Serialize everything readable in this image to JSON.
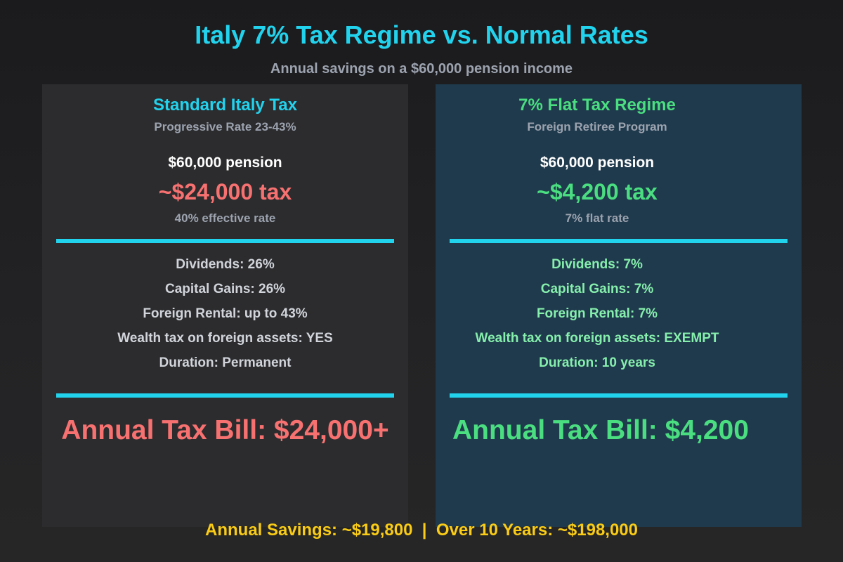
{
  "header": {
    "title": "Italy 7% Tax Regime vs. Normal Rates",
    "subtitle": "Annual savings on a $60,000 pension income"
  },
  "colors": {
    "accent_cyan": "#22d3ee",
    "negative_red": "#f87171",
    "positive_green": "#4ade80",
    "light_green": "#86efac",
    "highlight_yellow": "#facc15",
    "muted_gray": "#9ca3af",
    "left_panel_bg": "#2c2c2e",
    "right_panel_bg": "#1f3a4d"
  },
  "panels": [
    {
      "title": "Standard Italy Tax",
      "subtitle": "Progressive Rate 23-43%",
      "pension": "$60,000 pension",
      "tax": "~$24,000 tax",
      "rate_note": "40% effective rate",
      "details": [
        "Dividends: 26%",
        "Capital Gains: 26%",
        "Foreign Rental: up to 43%",
        "Wealth tax on foreign assets: YES",
        "Duration: Permanent"
      ],
      "bill": "Annual Tax Bill: $24,000+"
    },
    {
      "title": "7% Flat Tax Regime",
      "subtitle": "Foreign Retiree Program",
      "pension": "$60,000 pension",
      "tax": "~$4,200 tax",
      "rate_note": "7% flat rate",
      "details": [
        "Dividends: 7%",
        "Capital Gains: 7%",
        "Foreign Rental: 7%",
        "Wealth tax on foreign assets: EXEMPT",
        "Duration: 10 years"
      ],
      "bill": "Annual Tax Bill: $4,200"
    }
  ],
  "footer": {
    "summary": "Annual Savings: ~$19,800  |  Over 10 Years: ~$198,000"
  }
}
